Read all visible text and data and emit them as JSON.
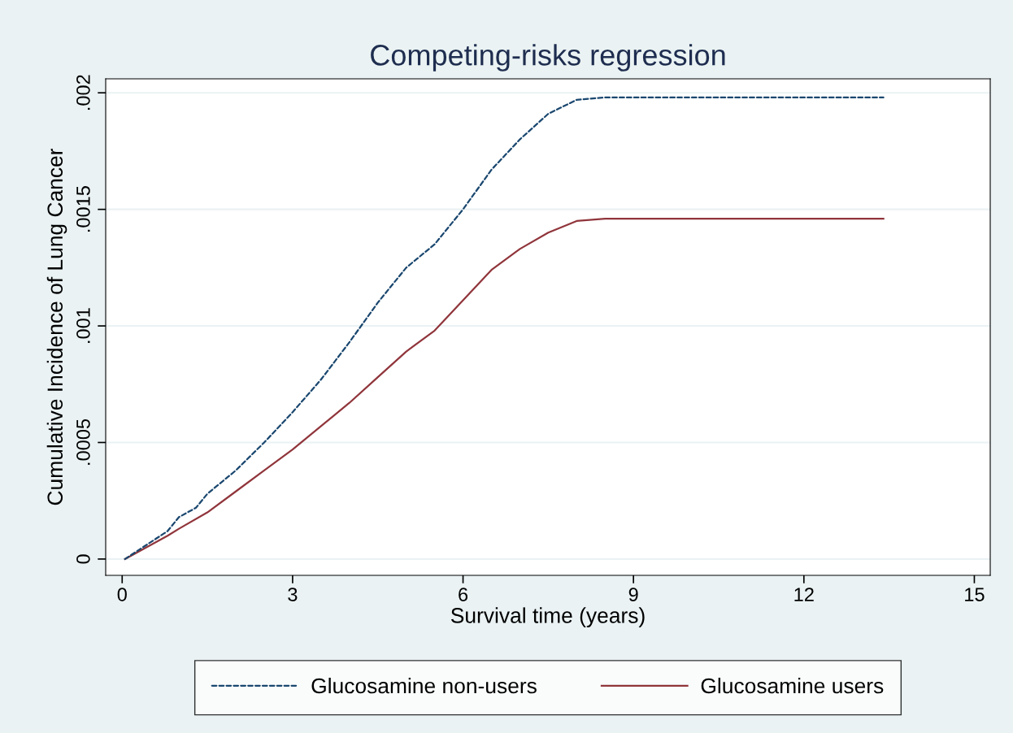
{
  "chart_data": {
    "type": "line",
    "title": "Competing-risks regression",
    "xlabel": "Survival time (years)",
    "ylabel": "Cumulative Incidence of Lung Cancer",
    "xlim": [
      -0.29,
      15.28
    ],
    "xticks": [
      0,
      3,
      6,
      9,
      12,
      15
    ],
    "ylim": [
      -7e-05,
      0.00206
    ],
    "yticks": [
      0,
      {
        "value": 0.0005,
        "label": ".0005"
      },
      {
        "value": 0.001,
        "label": ".001"
      },
      {
        "value": 0.0015,
        "label": ".0015"
      },
      {
        "value": 0.002,
        "label": ".002"
      }
    ],
    "grid": "y",
    "legend": "bottom",
    "marker": "none",
    "series": [
      {
        "name": "Glucosamine non-users",
        "color": "#1a476f",
        "line_style": "dashed",
        "x": [
          0.05,
          0.8,
          1,
          1.3,
          1.5,
          2,
          2.5,
          3,
          3.5,
          4,
          4.5,
          5,
          5.5,
          6,
          6.5,
          7,
          7.5,
          8,
          8.5,
          9,
          13.4
        ],
        "values": [
          0,
          0.00012,
          0.00018,
          0.00022,
          0.00028,
          0.00038,
          0.0005,
          0.00063,
          0.00077,
          0.00093,
          0.0011,
          0.00125,
          0.00135,
          0.0015,
          0.00167,
          0.0018,
          0.00191,
          0.00197,
          0.00198,
          0.00198,
          0.00198
        ]
      },
      {
        "name": "Glucosamine users",
        "color": "#90353b",
        "line_style": "solid",
        "x": [
          0.05,
          0.8,
          1,
          1.5,
          2,
          2.5,
          3,
          3.5,
          4,
          4.5,
          5,
          5.5,
          6,
          6.5,
          7,
          7.5,
          8,
          8.5,
          9,
          13.4
        ],
        "values": [
          0,
          0.0001,
          0.00013,
          0.0002,
          0.00029,
          0.00038,
          0.00047,
          0.00057,
          0.00067,
          0.00078,
          0.00089,
          0.00098,
          0.00111,
          0.00124,
          0.00133,
          0.0014,
          0.00145,
          0.00146,
          0.00146,
          0.00146
        ]
      }
    ]
  }
}
